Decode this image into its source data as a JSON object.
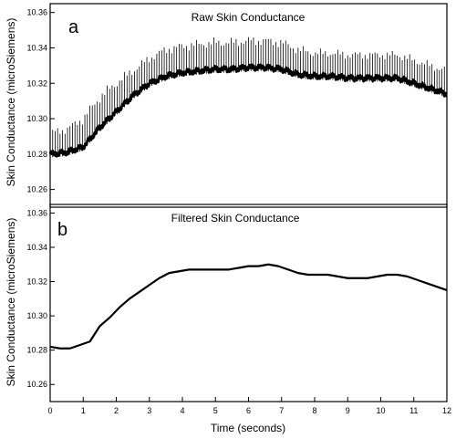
{
  "chart_data": [
    {
      "type": "line",
      "panel_letter": "a",
      "title": "Raw Skin Conductance",
      "ylabel": "Skin Conductance (microSiemens)",
      "xlabel": "",
      "xlim": [
        0,
        12
      ],
      "ylim": [
        10.25,
        10.365
      ],
      "yticks": [
        "10.26",
        "10.28",
        "10.30",
        "10.32",
        "10.34",
        "10.36"
      ],
      "xticks": [],
      "grid": false,
      "series": [
        {
          "color": "#000000",
          "x": [
            0,
            0.5,
            1.0,
            1.5,
            2.0,
            2.5,
            3.0,
            3.5,
            4.0,
            4.5,
            5.0,
            5.5,
            6.0,
            6.5,
            7.0,
            7.5,
            8.0,
            8.5,
            9.0,
            9.5,
            10.0,
            10.5,
            11.0,
            11.5,
            12.0
          ],
          "y_lower": [
            10.278,
            10.279,
            10.282,
            10.293,
            10.302,
            10.311,
            10.318,
            10.322,
            10.324,
            10.325,
            10.326,
            10.326,
            10.327,
            10.327,
            10.326,
            10.323,
            10.322,
            10.322,
            10.321,
            10.321,
            10.321,
            10.321,
            10.318,
            10.315,
            10.312
          ],
          "y_upper": [
            10.292,
            10.294,
            10.3,
            10.312,
            10.32,
            10.327,
            10.334,
            10.339,
            10.341,
            10.342,
            10.343,
            10.343,
            10.344,
            10.344,
            10.343,
            10.339,
            10.337,
            10.337,
            10.336,
            10.336,
            10.336,
            10.336,
            10.333,
            10.33,
            10.327
          ]
        }
      ]
    },
    {
      "type": "line",
      "panel_letter": "b",
      "title": "Filtered Skin Conductance",
      "ylabel": "Skin Conductance (microSiemens)",
      "xlabel": "Time (seconds)",
      "xlim": [
        0,
        12
      ],
      "ylim": [
        10.25,
        10.365
      ],
      "yticks": [
        "10.26",
        "10.28",
        "10.30",
        "10.32",
        "10.34",
        "10.36"
      ],
      "xticks": [
        "0",
        "1",
        "2",
        "3",
        "4",
        "5",
        "6",
        "7",
        "8",
        "9",
        "10",
        "11",
        "12"
      ],
      "grid": false,
      "series": [
        {
          "color": "#000000",
          "x": [
            0,
            0.3,
            0.6,
            0.9,
            1.2,
            1.5,
            1.8,
            2.1,
            2.4,
            2.7,
            3.0,
            3.3,
            3.6,
            3.9,
            4.2,
            4.5,
            4.8,
            5.1,
            5.4,
            5.7,
            6.0,
            6.3,
            6.6,
            6.9,
            7.2,
            7.5,
            7.8,
            8.1,
            8.4,
            8.7,
            9.0,
            9.3,
            9.6,
            9.9,
            10.2,
            10.5,
            10.8,
            11.1,
            11.4,
            11.7,
            12.0
          ],
          "y": [
            10.282,
            10.281,
            10.281,
            10.283,
            10.285,
            10.294,
            10.299,
            10.305,
            10.31,
            10.314,
            10.318,
            10.322,
            10.325,
            10.326,
            10.327,
            10.327,
            10.327,
            10.327,
            10.327,
            10.328,
            10.329,
            10.329,
            10.33,
            10.329,
            10.327,
            10.325,
            10.324,
            10.324,
            10.324,
            10.323,
            10.322,
            10.322,
            10.322,
            10.323,
            10.324,
            10.324,
            10.323,
            10.321,
            10.319,
            10.317,
            10.315
          ]
        }
      ]
    }
  ]
}
